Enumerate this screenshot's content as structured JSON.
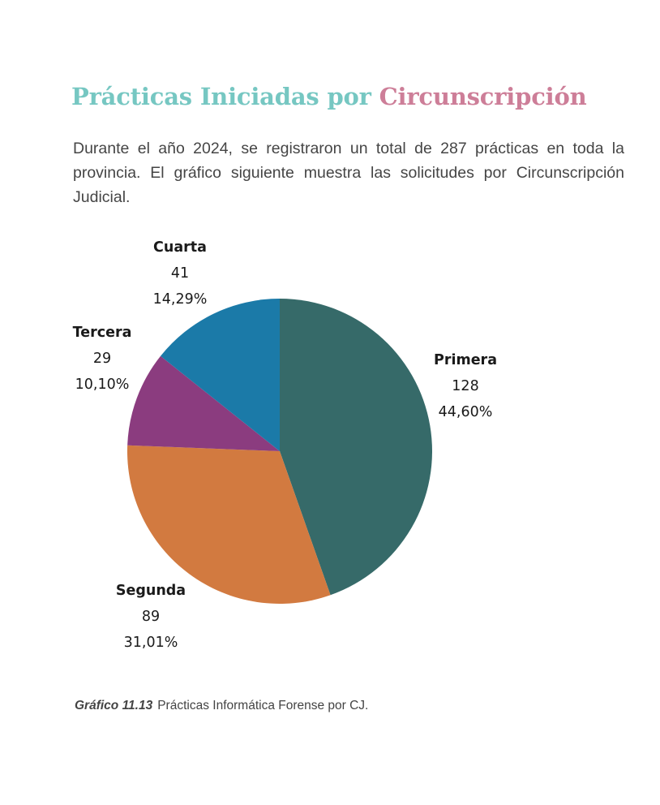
{
  "heading": {
    "part1": "Prácticas Iniciadas por ",
    "part2": "Circunscripción",
    "color1": "#76c7c2",
    "color2": "#cd7e98"
  },
  "intro": "Durante el año 2024, se registraron un total de 287 prácticas en toda la provincia. El gráfico siguiente muestra las solicitudes por Circunscripción Judicial.",
  "chart_data": {
    "type": "pie",
    "total": 287,
    "slices": [
      {
        "name": "Primera",
        "value": 128,
        "percent": "44,60%",
        "color": "#366a69"
      },
      {
        "name": "Segunda",
        "value": 89,
        "percent": "31,01%",
        "color": "#d27a40"
      },
      {
        "name": "Tercera",
        "value": 29,
        "percent": "10,10%",
        "color": "#8b3c7f"
      },
      {
        "name": "Cuarta",
        "value": 41,
        "percent": "14,29%",
        "color": "#1b7aa8"
      }
    ],
    "start_angle_deg": 0,
    "direction": "clockwise",
    "labels_outside": true
  },
  "caption": {
    "label": "Gráfico 11.13",
    "text": "Prácticas Informática Forense por CJ."
  }
}
